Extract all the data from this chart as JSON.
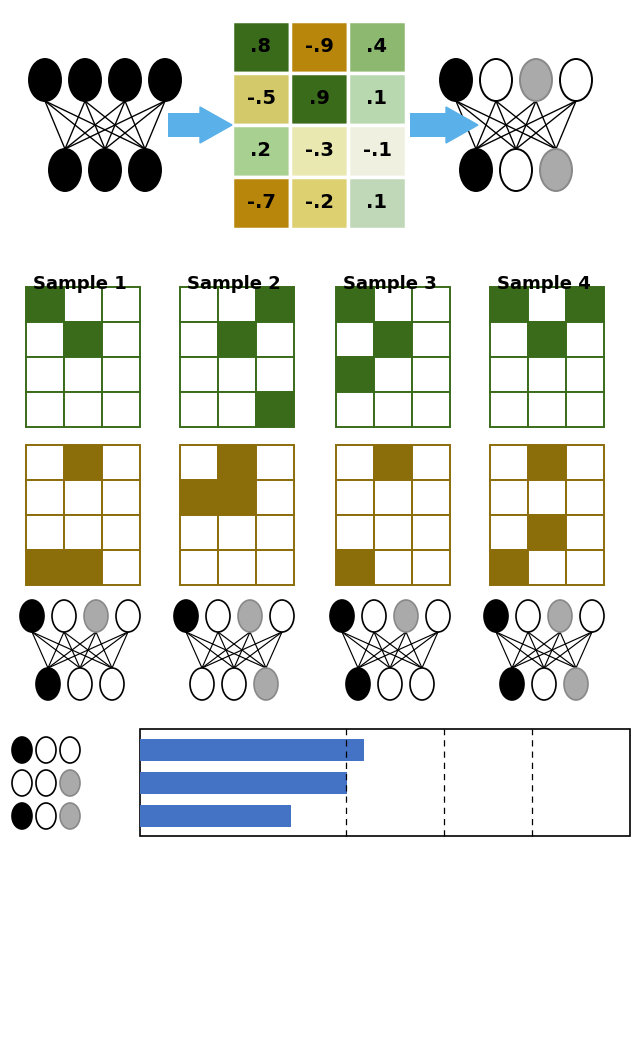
{
  "weight_labels": [
    [
      ".8",
      "-.9",
      ".4"
    ],
    [
      "-.5",
      ".9",
      ".1"
    ],
    [
      ".2",
      "-.3",
      "-.1"
    ],
    [
      "-.7",
      "-.2",
      ".1"
    ]
  ],
  "weight_colors": [
    [
      "#3a6b1a",
      "#b8860b",
      "#8db870"
    ],
    [
      "#d4c96a",
      "#3a6b1a",
      "#b8d8b0"
    ],
    [
      "#a8d090",
      "#e8e8b0",
      "#f0f0e0"
    ],
    [
      "#b8860b",
      "#ddd070",
      "#c0d8b8"
    ]
  ],
  "sample_labels": [
    "Sample 1",
    "Sample 2",
    "Sample 3",
    "Sample 4"
  ],
  "green_samples": [
    [
      [
        1,
        0,
        0
      ],
      [
        0,
        1,
        0
      ],
      [
        0,
        0,
        0
      ],
      [
        0,
        0,
        0
      ]
    ],
    [
      [
        0,
        0,
        1
      ],
      [
        0,
        1,
        0
      ],
      [
        0,
        0,
        0
      ],
      [
        0,
        0,
        1
      ]
    ],
    [
      [
        1,
        0,
        0
      ],
      [
        0,
        1,
        0
      ],
      [
        1,
        0,
        0
      ],
      [
        0,
        0,
        0
      ]
    ],
    [
      [
        1,
        0,
        1
      ],
      [
        0,
        1,
        0
      ],
      [
        0,
        0,
        0
      ],
      [
        0,
        0,
        0
      ]
    ]
  ],
  "brown_samples": [
    [
      [
        0,
        1,
        0
      ],
      [
        0,
        0,
        0
      ],
      [
        0,
        0,
        0
      ],
      [
        1,
        1,
        0
      ]
    ],
    [
      [
        0,
        1,
        0
      ],
      [
        1,
        1,
        0
      ],
      [
        0,
        0,
        0
      ],
      [
        0,
        0,
        0
      ]
    ],
    [
      [
        0,
        1,
        0
      ],
      [
        0,
        0,
        0
      ],
      [
        0,
        0,
        0
      ],
      [
        1,
        0,
        0
      ]
    ],
    [
      [
        0,
        1,
        0
      ],
      [
        0,
        0,
        0
      ],
      [
        0,
        1,
        0
      ],
      [
        1,
        0,
        0
      ]
    ]
  ],
  "green_color": "#3a6b1a",
  "green_border": "#3a6b1a",
  "brown_color": "#8b6d0a",
  "brown_border": "#8b6d0a",
  "bar_values": [
    0.52,
    0.48,
    0.35
  ],
  "bar_color": "#4472c4",
  "sample_nn_top": [
    [
      "black",
      "white",
      "gray",
      "white"
    ],
    [
      "black",
      "white",
      "gray",
      "white"
    ],
    [
      "black",
      "white",
      "gray",
      "white"
    ],
    [
      "black",
      "white",
      "gray",
      "white"
    ]
  ],
  "sample_nn_bot": [
    [
      "black",
      "white",
      "white"
    ],
    [
      "white",
      "white",
      "gray"
    ],
    [
      "black",
      "white",
      "white"
    ],
    [
      "black",
      "white",
      "gray"
    ]
  ],
  "legend_rows": [
    [
      "black",
      "white",
      "white"
    ],
    [
      "white",
      "white",
      "gray"
    ],
    [
      "black",
      "white",
      "gray"
    ]
  ]
}
